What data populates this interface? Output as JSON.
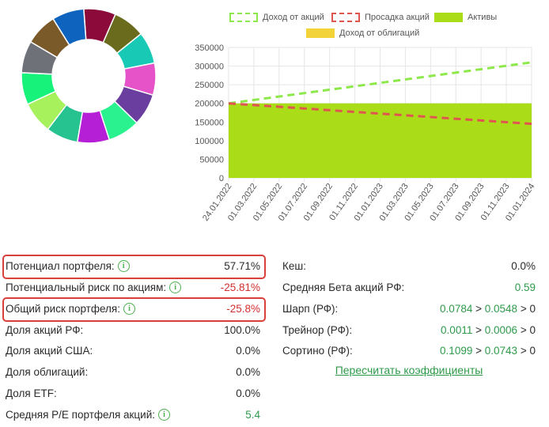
{
  "donut": {
    "colors": [
      "#8b0a3a",
      "#6b6b1e",
      "#18c9b5",
      "#e652c8",
      "#6a3e9e",
      "#2af28f",
      "#b51fd6",
      "#26c28f",
      "#a6f15c",
      "#17f27a",
      "#6f7179",
      "#7b5a2a",
      "#0e63bf"
    ]
  },
  "chart_data": {
    "type": "line",
    "x": [
      "24.01.2022",
      "01.03.2022",
      "01.05.2022",
      "01.07.2022",
      "01.09.2022",
      "01.11.2022",
      "01.01.2023",
      "01.03.2023",
      "01.05.2023",
      "01.07.2023",
      "01.09.2023",
      "01.11.2023",
      "01.01.2024"
    ],
    "ylim": [
      0,
      350000
    ],
    "yticks": [
      "0",
      "50000",
      "100000",
      "150000",
      "200000",
      "250000",
      "300000",
      "350000"
    ],
    "grid": true,
    "legend_position": "top",
    "series": [
      {
        "name": "Доход от акций",
        "type": "line",
        "style": "dashed",
        "color": "#8de84a",
        "start": 200000,
        "end": 310000
      },
      {
        "name": "Просадка акций",
        "type": "line",
        "style": "dashed",
        "color": "#e0554f",
        "start": 200000,
        "end": 145000
      },
      {
        "name": "Активы",
        "type": "area",
        "color": "#aadc18",
        "start": 200000,
        "end": 200000
      },
      {
        "name": "Доход от облигаций",
        "type": "area",
        "color": "#f3d33a",
        "start": 0,
        "end": 0
      }
    ]
  },
  "left_metrics": [
    {
      "label": "Потенциал портфеля:",
      "info": true,
      "value": "57.71%",
      "value_color": "default",
      "highlighted": true
    },
    {
      "label": "Потенциальный риск по акциям:",
      "info": true,
      "value": "-25.81%",
      "value_color": "red",
      "highlighted": false
    },
    {
      "label": "Общий риск портфеля:",
      "info": true,
      "value": "-25.8%",
      "value_color": "red",
      "highlighted": true
    },
    {
      "label": "Доля акций РФ:",
      "info": false,
      "value": "100.0%",
      "value_color": "default",
      "highlighted": false
    },
    {
      "label": "Доля акций США:",
      "info": false,
      "value": "0.0%",
      "value_color": "default",
      "highlighted": false
    },
    {
      "label": "Доля облигаций:",
      "info": false,
      "value": "0.0%",
      "value_color": "default",
      "highlighted": false
    },
    {
      "label": "Доля ETF:",
      "info": false,
      "value": "0.0%",
      "value_color": "default",
      "highlighted": false
    },
    {
      "label": "Средняя P/E портфеля акций:",
      "info": true,
      "value": "5.4",
      "value_color": "green",
      "highlighted": false
    }
  ],
  "right_metrics": [
    {
      "label": "Кеш:",
      "value": "0.0%",
      "value_color": "default"
    },
    {
      "label": "Средняя Бета акций РФ:",
      "value": "0.59",
      "value_color": "green"
    },
    {
      "label": "Шарп (РФ):",
      "value_a": "0.0784",
      "value_b": "0.0548",
      "threshold": "0"
    },
    {
      "label": "Трейнор (РФ):",
      "value_a": "0.0011",
      "value_b": "0.0006",
      "threshold": "0"
    },
    {
      "label": "Сортино (РФ):",
      "value_a": "0.1099",
      "value_b": "0.0743",
      "threshold": "0"
    }
  ],
  "info_glyph": "i",
  "gt": ">",
  "recalc_link": "Пересчитать коэффициенты"
}
